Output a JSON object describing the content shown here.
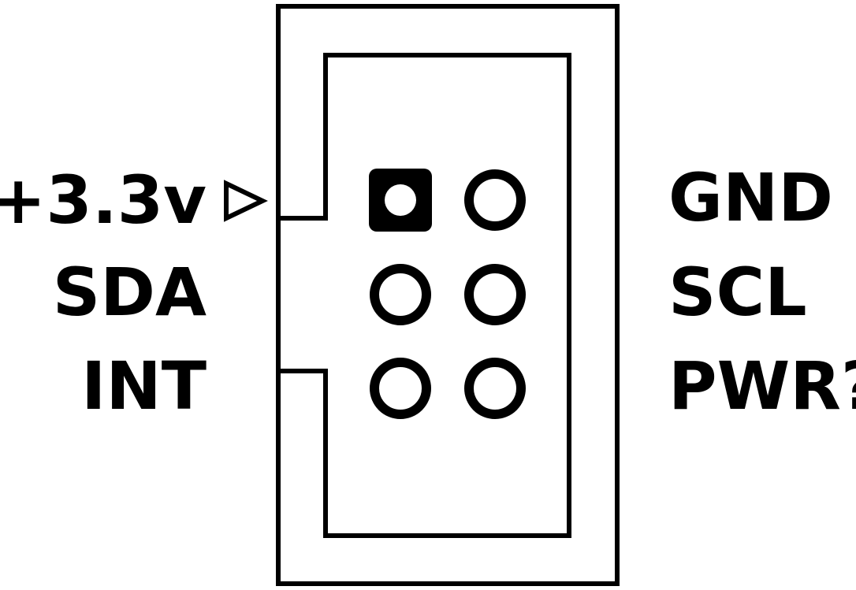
{
  "connector": {
    "left_labels": [
      "+3.3v",
      "SDA",
      "INT"
    ],
    "right_labels": [
      "GND",
      "SCL",
      "PWR?"
    ],
    "pin1_marker": "triangle-pin1-indicator",
    "pads": {
      "rows": 3,
      "columns": 2,
      "pin1_shape": "square",
      "other_shape": "round"
    },
    "colors": {
      "ink": "#000000",
      "background": "#ffffff"
    }
  }
}
